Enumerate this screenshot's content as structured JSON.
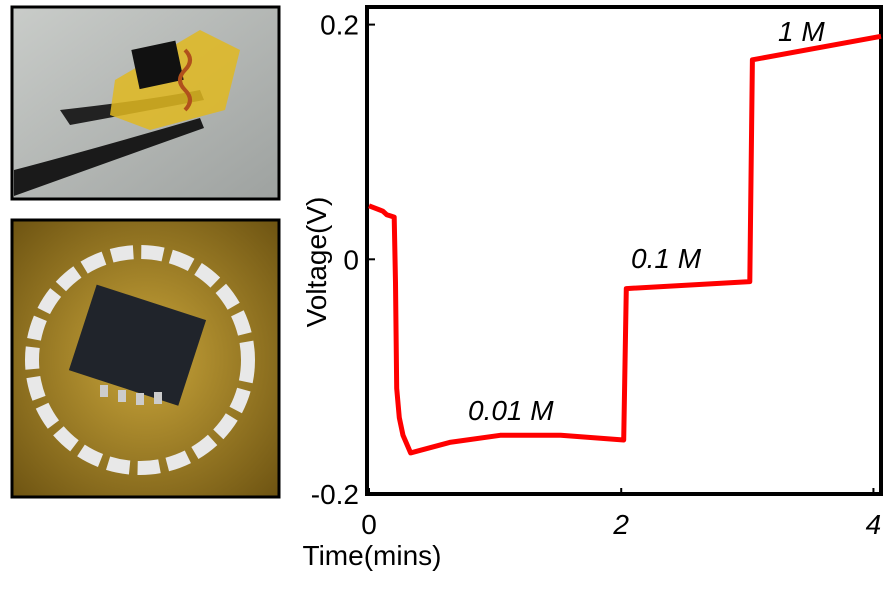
{
  "chart_data": {
    "type": "line",
    "xlabel": "Time(mins)",
    "ylabel": "Voltage(V)",
    "xlim": [
      0,
      4.06
    ],
    "ylim": [
      -0.2,
      0.215
    ],
    "xticks": [
      0,
      2,
      4
    ],
    "yticks": [
      -0.2,
      0,
      0.2
    ],
    "series": [
      {
        "color": "#ff0000",
        "x": [
          0,
          0.11,
          0.14,
          0.17,
          0.2,
          0.21,
          0.22,
          0.24,
          0.27,
          0.33,
          0.4,
          0.64,
          1.04,
          1.52,
          2.02,
          2.04,
          3.02,
          3.04,
          4.06
        ],
        "values": [
          0.0456,
          0.041,
          0.038,
          0.037,
          0.036,
          -0.02,
          -0.11,
          -0.135,
          -0.15,
          -0.165,
          -0.163,
          -0.156,
          -0.15,
          -0.15,
          -0.154,
          -0.025,
          -0.019,
          0.17,
          0.19
        ]
      }
    ],
    "annotations": [
      "1 M",
      "0.1 M",
      "0.01 M"
    ]
  }
}
